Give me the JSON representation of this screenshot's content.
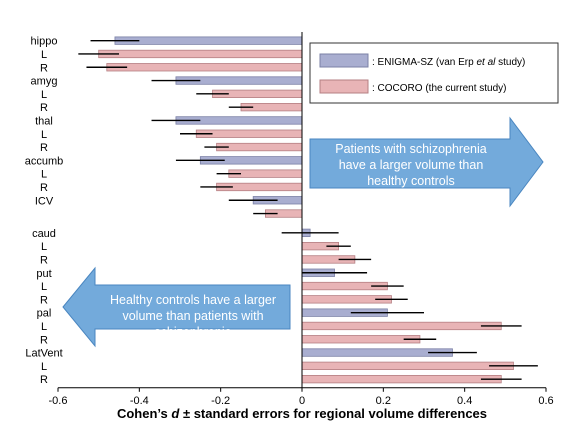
{
  "chart_data": {
    "type": "bar",
    "orientation": "horizontal",
    "xlabel_parts": [
      "Cohen’s ",
      "d",
      " ± standard errors for regional volume differences"
    ],
    "xlim": [
      -0.6,
      0.6
    ],
    "xticks": [
      "-0.6",
      "-0.4",
      "-0.2",
      "0",
      "0.2",
      "0.4",
      "0.6"
    ],
    "grid": false,
    "legend_position": "top-right",
    "legend": [
      {
        "text_parts": [
          ": ENIGMA-SZ (van Erp ",
          "et al",
          " study)"
        ],
        "color": "#a9aed0"
      },
      {
        "text_parts": [
          ": COCORO (the current study)"
        ],
        "color": "#e8b4b6"
      }
    ],
    "colors": {
      "enigma_fill": "#a9aed0",
      "enigma_edge": "#7b80a6",
      "cocoro_fill": "#e8b4b6",
      "cocoro_edge": "#b57f83",
      "arrow": "#5b9bd5"
    },
    "bars": [
      {
        "label": "hippo",
        "series": "ENIGMA-SZ",
        "value": -0.46,
        "se": 0.06
      },
      {
        "label": "L",
        "series": "COCORO",
        "value": -0.5,
        "se": 0.05
      },
      {
        "label": "R",
        "series": "COCORO",
        "value": -0.48,
        "se": 0.05
      },
      {
        "label": "amyg",
        "series": "ENIGMA-SZ",
        "value": -0.31,
        "se": 0.06
      },
      {
        "label": "L",
        "series": "COCORO",
        "value": -0.22,
        "se": 0.04
      },
      {
        "label": "R",
        "series": "COCORO",
        "value": -0.15,
        "se": 0.03
      },
      {
        "label": "thal",
        "series": "ENIGMA-SZ",
        "value": -0.31,
        "se": 0.06
      },
      {
        "label": "L",
        "series": "COCORO",
        "value": -0.26,
        "se": 0.04
      },
      {
        "label": "R",
        "series": "COCORO",
        "value": -0.21,
        "se": 0.03
      },
      {
        "label": "accumb",
        "series": "ENIGMA-SZ",
        "value": -0.25,
        "se": 0.06
      },
      {
        "label": "L",
        "series": "COCORO",
        "value": -0.18,
        "se": 0.03
      },
      {
        "label": "R",
        "series": "COCORO",
        "value": -0.21,
        "se": 0.04
      },
      {
        "label": "ICV",
        "series": "ENIGMA-SZ",
        "value": -0.12,
        "se": 0.06
      },
      {
        "label": "",
        "series": "COCORO",
        "value": -0.09,
        "se": 0.03
      },
      {
        "label": "caud",
        "series": "ENIGMA-SZ",
        "value": 0.02,
        "se": 0.07
      },
      {
        "label": "L",
        "series": "COCORO",
        "value": 0.09,
        "se": 0.03
      },
      {
        "label": "R",
        "series": "COCORO",
        "value": 0.13,
        "se": 0.04
      },
      {
        "label": "put",
        "series": "ENIGMA-SZ",
        "value": 0.08,
        "se": 0.08
      },
      {
        "label": "L",
        "series": "COCORO",
        "value": 0.21,
        "se": 0.04
      },
      {
        "label": "R",
        "series": "COCORO",
        "value": 0.22,
        "se": 0.04
      },
      {
        "label": "pal",
        "series": "ENIGMA-SZ",
        "value": 0.21,
        "se": 0.09
      },
      {
        "label": "L",
        "series": "COCORO",
        "value": 0.49,
        "se": 0.05
      },
      {
        "label": "R",
        "series": "COCORO",
        "value": 0.29,
        "se": 0.04
      },
      {
        "label": "LatVent",
        "series": "ENIGMA-SZ",
        "value": 0.37,
        "se": 0.06
      },
      {
        "label": "L",
        "series": "COCORO",
        "value": 0.52,
        "se": 0.06
      },
      {
        "label": "R",
        "series": "COCORO",
        "value": 0.49,
        "se": 0.05
      }
    ],
    "annotations": {
      "right_arrow": [
        "Patients with schizophrenia",
        "have a larger volume than",
        "healthy controls"
      ],
      "left_arrow": [
        "Healthy controls have a larger",
        "volume than patients with",
        "schizophrenia"
      ]
    }
  }
}
